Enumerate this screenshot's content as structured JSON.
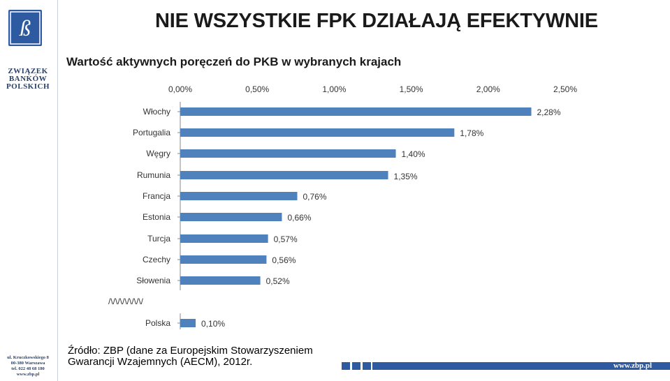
{
  "header": {
    "title": "NIE WSZYSTKIE FPK DZIAŁAJĄ EFEKTYWNIE",
    "logo_letter": "ß",
    "org_lines": [
      "ZWIĄZEK",
      "BANKÓW",
      "POLSKICH"
    ],
    "address_lines": [
      "ul. Kruczkowskiego 8",
      "00-380 Warszawa",
      "tel. 022 48 68 180",
      "www.zbp.pl"
    ]
  },
  "chart_data": {
    "type": "bar",
    "orientation": "horizontal",
    "title": "Wartość aktywnych poręczeń do PKB w wybranych krajach",
    "categories": [
      "Włochy",
      "Portugalia",
      "Węgry",
      "Rumunia",
      "Francja",
      "Estonia",
      "Turcja",
      "Czechy",
      "Słowenia",
      "Polska"
    ],
    "values": [
      2.28,
      1.78,
      1.4,
      1.35,
      0.76,
      0.66,
      0.57,
      0.56,
      0.52,
      0.1
    ],
    "value_labels": [
      "2,28%",
      "1,78%",
      "1,40%",
      "1,35%",
      "0,76%",
      "0,66%",
      "0,57%",
      "0,56%",
      "0,52%",
      "0,10%"
    ],
    "axis_ticks": [
      "0,00%",
      "0,50%",
      "1,00%",
      "1,50%",
      "2,00%",
      "2,50%"
    ],
    "xlim": [
      0,
      2.5
    ],
    "axis_position": "top",
    "break_marker": "/\\/\\/\\/\\/\\/\\/\\/",
    "bar_color": "#4f81bd",
    "grid": false
  },
  "footer": {
    "source": "Źródło: ZBP (dane za Europejskim Stowarzyszeniem Gwarancji Wzajemnych (AECM), 2012r.",
    "url": "www.zbp.pl",
    "accent_color": "#2d5aa0"
  }
}
